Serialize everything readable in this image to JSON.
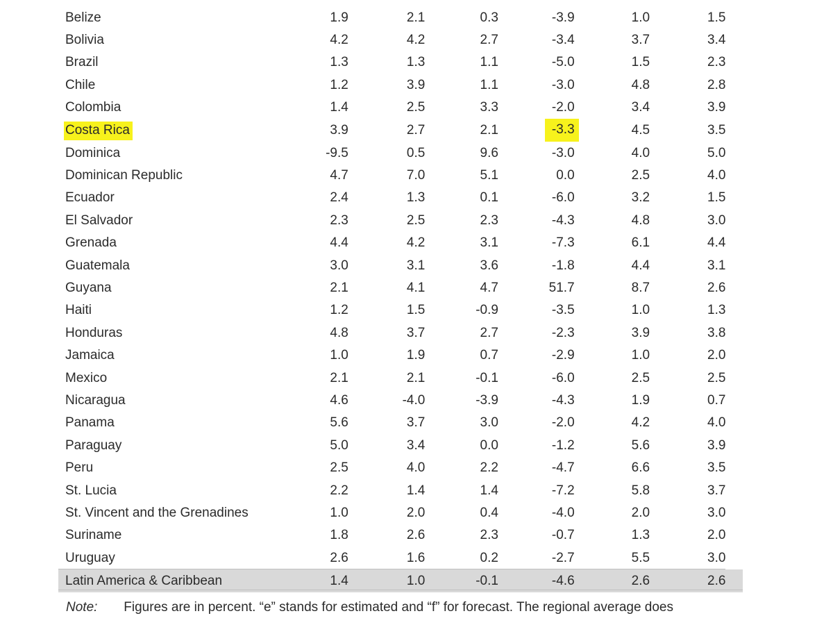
{
  "table": {
    "rows": [
      {
        "country": "Belize",
        "values": [
          "1.9",
          "2.1",
          "0.3",
          "-3.9",
          "1.0",
          "1.5"
        ]
      },
      {
        "country": "Bolivia",
        "values": [
          "4.2",
          "4.2",
          "2.7",
          "-3.4",
          "3.7",
          "3.4"
        ]
      },
      {
        "country": "Brazil",
        "values": [
          "1.3",
          "1.3",
          "1.1",
          "-5.0",
          "1.5",
          "2.3"
        ]
      },
      {
        "country": "Chile",
        "values": [
          "1.2",
          "3.9",
          "1.1",
          "-3.0",
          "4.8",
          "2.8"
        ]
      },
      {
        "country": "Colombia",
        "values": [
          "1.4",
          "2.5",
          "3.3",
          "-2.0",
          "3.4",
          "3.9"
        ]
      },
      {
        "country": "Costa Rica",
        "values": [
          "3.9",
          "2.7",
          "2.1",
          "-3.3",
          "4.5",
          "3.5"
        ],
        "highlighted": true
      },
      {
        "country": "Dominica",
        "values": [
          "-9.5",
          "0.5",
          "9.6",
          "-3.0",
          "4.0",
          "5.0"
        ]
      },
      {
        "country": "Dominican Republic",
        "values": [
          "4.7",
          "7.0",
          "5.1",
          "0.0",
          "2.5",
          "4.0"
        ]
      },
      {
        "country": "Ecuador",
        "values": [
          "2.4",
          "1.3",
          "0.1",
          "-6.0",
          "3.2",
          "1.5"
        ]
      },
      {
        "country": "El Salvador",
        "values": [
          "2.3",
          "2.5",
          "2.3",
          "-4.3",
          "4.8",
          "3.0"
        ]
      },
      {
        "country": "Grenada",
        "values": [
          "4.4",
          "4.2",
          "3.1",
          "-7.3",
          "6.1",
          "4.4"
        ]
      },
      {
        "country": "Guatemala",
        "values": [
          "3.0",
          "3.1",
          "3.6",
          "-1.8",
          "4.4",
          "3.1"
        ]
      },
      {
        "country": "Guyana",
        "values": [
          "2.1",
          "4.1",
          "4.7",
          "51.7",
          "8.7",
          "2.6"
        ]
      },
      {
        "country": "Haiti",
        "values": [
          "1.2",
          "1.5",
          "-0.9",
          "-3.5",
          "1.0",
          "1.3"
        ]
      },
      {
        "country": "Honduras",
        "values": [
          "4.8",
          "3.7",
          "2.7",
          "-2.3",
          "3.9",
          "3.8"
        ]
      },
      {
        "country": "Jamaica",
        "values": [
          "1.0",
          "1.9",
          "0.7",
          "-2.9",
          "1.0",
          "2.0"
        ]
      },
      {
        "country": "Mexico",
        "values": [
          "2.1",
          "2.1",
          "-0.1",
          "-6.0",
          "2.5",
          "2.5"
        ]
      },
      {
        "country": "Nicaragua",
        "values": [
          "4.6",
          "-4.0",
          "-3.9",
          "-4.3",
          "1.9",
          "0.7"
        ]
      },
      {
        "country": "Panama",
        "values": [
          "5.6",
          "3.7",
          "3.0",
          "-2.0",
          "4.2",
          "4.0"
        ]
      },
      {
        "country": "Paraguay",
        "values": [
          "5.0",
          "3.4",
          "0.0",
          "-1.2",
          "5.6",
          "3.9"
        ]
      },
      {
        "country": "Peru",
        "values": [
          "2.5",
          "4.0",
          "2.2",
          "-4.7",
          "6.6",
          "3.5"
        ]
      },
      {
        "country": "St. Lucia",
        "values": [
          "2.2",
          "1.4",
          "1.4",
          "-7.2",
          "5.8",
          "3.7"
        ]
      },
      {
        "country": "St. Vincent and the Grenadines",
        "values": [
          "1.0",
          "2.0",
          "0.4",
          "-4.0",
          "2.0",
          "3.0"
        ]
      },
      {
        "country": "Suriname",
        "values": [
          "1.8",
          "2.6",
          "2.3",
          "-0.7",
          "1.3",
          "2.0"
        ]
      },
      {
        "country": "Uruguay",
        "values": [
          "2.6",
          "1.6",
          "0.2",
          "-2.7",
          "5.5",
          "3.0"
        ]
      }
    ],
    "total": {
      "country": "Latin America & Caribbean",
      "values": [
        "1.4",
        "1.0",
        "-0.1",
        "-4.6",
        "2.6",
        "2.6"
      ]
    }
  },
  "note": {
    "label": "Note:",
    "text": "Figures are in percent. “e” stands for estimated and “f” for forecast. The regional average does"
  },
  "colors": {
    "highlight": "#f7f21c",
    "total_row": "#d9d9d9",
    "text": "#2b2b2b"
  }
}
